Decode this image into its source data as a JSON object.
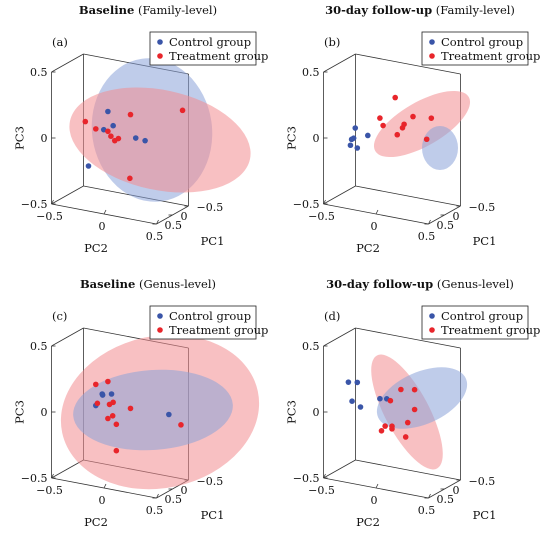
{
  "colors": {
    "control": "#3a55a8",
    "treatment": "#e8252b",
    "control_fill": "#8ba3d8",
    "treatment_fill": "#f28c90",
    "axis": "#333333"
  },
  "legend": {
    "control": "Control group",
    "treatment": "Treatment group"
  },
  "chart_data": [
    {
      "type": "scatter",
      "panel": "(a)",
      "title_bold": "Baseline",
      "title_rest": " (Family-level)",
      "xlabel": "PC1",
      "ylabel": "PC2",
      "zlabel": "PC3",
      "xlim": [
        -0.5,
        0.5
      ],
      "ylim": [
        -0.5,
        0.5
      ],
      "zlim": [
        -0.5,
        0.5
      ],
      "xticks": [
        "−0.5",
        "0",
        "0.5"
      ],
      "yticks": [
        "−0.5",
        "0",
        "0.5"
      ],
      "zticks": [
        "−0.5",
        "0",
        "0.5"
      ],
      "series": [
        {
          "name": "Control group",
          "values": [
            [
              0.05,
              -0.05,
              0.1
            ],
            [
              0.2,
              0.3,
              0.06
            ],
            [
              0.05,
              -0.1,
              0.2
            ],
            [
              0.0,
              0.15,
              0.03
            ],
            [
              0.0,
              -0.3,
              -0.25
            ],
            [
              0.18,
              -0.1,
              0.08
            ]
          ]
        },
        {
          "name": "Treatment group",
          "values": [
            [
              -0.15,
              0.55,
              0.28
            ],
            [
              0.1,
              -0.3,
              0.1
            ],
            [
              0.05,
              0.0,
              0.01
            ],
            [
              0.0,
              0.1,
              0.2
            ],
            [
              0.05,
              -0.1,
              0.05
            ],
            [
              0.1,
              -0.2,
              0.06
            ],
            [
              0.02,
              0.1,
              -0.28
            ],
            [
              0.12,
              -0.05,
              0.03
            ],
            [
              0.0,
              -0.05,
              -0.02
            ]
          ]
        }
      ]
    },
    {
      "type": "scatter",
      "panel": "(b)",
      "title_bold": "30-day follow-up",
      "title_rest": " (Family-level)",
      "xlabel": "PC1",
      "ylabel": "PC2",
      "zlabel": "PC3",
      "xlim": [
        -0.5,
        0.5
      ],
      "ylim": [
        -0.5,
        0.5
      ],
      "zlim": [
        -0.5,
        0.5
      ],
      "xticks": [
        "−0.5",
        "0",
        "0.5"
      ],
      "yticks": [
        "−0.5",
        "0",
        "0.5"
      ],
      "zticks": [
        "−0.5",
        "0",
        "0.5"
      ],
      "series": [
        {
          "name": "Control group",
          "values": [
            [
              0.1,
              -0.3,
              -0.1
            ],
            [
              0.05,
              -0.35,
              -0.04
            ],
            [
              0.15,
              -0.35,
              -0.08
            ],
            [
              -0.05,
              -0.4,
              -0.07
            ],
            [
              0.1,
              -0.2,
              0.01
            ],
            [
              0.0,
              -0.35,
              0.03
            ]
          ]
        },
        {
          "name": "Treatment group",
          "values": [
            [
              -0.1,
              0.3,
              0.03
            ],
            [
              0.0,
              0.2,
              0.2
            ],
            [
              -0.1,
              0.0,
              0.3
            ],
            [
              0.05,
              -0.1,
              0.15
            ],
            [
              0.0,
              0.1,
              0.1
            ],
            [
              0.0,
              0.05,
              0.04
            ],
            [
              -0.05,
              0.1,
              0.12
            ],
            [
              -0.08,
              0.35,
              0.2
            ],
            [
              -0.05,
              -0.1,
              0.08
            ]
          ]
        }
      ]
    },
    {
      "type": "scatter",
      "panel": "(c)",
      "title_bold": "Baseline",
      "title_rest": " (Genus-level)",
      "xlabel": "PC1",
      "ylabel": "PC2",
      "zlabel": "PC3",
      "xlim": [
        -0.5,
        0.5
      ],
      "ylim": [
        -0.5,
        0.5
      ],
      "zlim": [
        -0.5,
        0.5
      ],
      "xticks": [
        "−0.5",
        "0",
        "0.5"
      ],
      "yticks": [
        "−0.5",
        "0",
        "0.5"
      ],
      "zticks": [
        "−0.5",
        "0",
        "0.5"
      ],
      "series": [
        {
          "name": "Control group",
          "values": [
            [
              -0.05,
              0.45,
              0.05
            ],
            [
              0.1,
              -0.05,
              0.15
            ],
            [
              0.05,
              -0.15,
              0.12
            ],
            [
              0.1,
              -0.2,
              0.04
            ],
            [
              -0.1,
              -0.2,
              0.1
            ]
          ]
        },
        {
          "name": "Treatment group",
          "values": [
            [
              -0.1,
              0.55,
              -0.02
            ],
            [
              0.05,
              -0.1,
              0.23
            ],
            [
              0.1,
              -0.2,
              0.2
            ],
            [
              0.0,
              -0.1,
              0.05
            ],
            [
              0.05,
              -0.05,
              0.08
            ],
            [
              -0.05,
              -0.05,
              -0.1
            ],
            [
              0.05,
              -0.1,
              -0.05
            ],
            [
              -0.05,
              -0.05,
              -0.3
            ],
            [
              -0.1,
              -0.1,
              -0.05
            ],
            [
              0.0,
              0.1,
              0.05
            ],
            [
              0.05,
              -0.2,
              0.05
            ]
          ]
        }
      ]
    },
    {
      "type": "scatter",
      "panel": "(d)",
      "title_bold": "30-day follow-up",
      "title_rest": " (Genus-level)",
      "xlabel": "PC1",
      "ylabel": "PC2",
      "zlabel": "PC3",
      "xlim": [
        -0.5,
        0.5
      ],
      "ylim": [
        -0.5,
        0.5
      ],
      "zlim": [
        -0.5,
        0.5
      ],
      "xticks": [
        "−0.5",
        "0",
        "0.5"
      ],
      "yticks": [
        "−0.5",
        "0",
        "0.5"
      ],
      "zticks": [
        "−0.5",
        "0",
        "0.5"
      ],
      "series": [
        {
          "name": "Control group",
          "values": [
            [
              0.1,
              -0.3,
              0.2
            ],
            [
              0.05,
              -0.4,
              0.18
            ],
            [
              0.1,
              -0.35,
              0.05
            ],
            [
              0.0,
              -0.3,
              0.0
            ],
            [
              0.05,
              -0.1,
              0.1
            ],
            [
              0.0,
              -0.05,
              0.1
            ]
          ]
        },
        {
          "name": "Treatment group",
          "values": [
            [
              -0.05,
              0.2,
              0.2
            ],
            [
              0.05,
              0.1,
              0.2
            ],
            [
              -0.05,
              0.2,
              0.05
            ],
            [
              0.0,
              0.15,
              -0.05
            ],
            [
              0.0,
              0.0,
              -0.1
            ],
            [
              0.05,
              -0.05,
              -0.1
            ],
            [
              0.0,
              0.0,
              -0.12
            ],
            [
              0.0,
              -0.1,
              -0.15
            ],
            [
              -0.1,
              0.1,
              -0.18
            ],
            [
              0.05,
              0.0,
              0.1
            ]
          ]
        }
      ]
    }
  ]
}
